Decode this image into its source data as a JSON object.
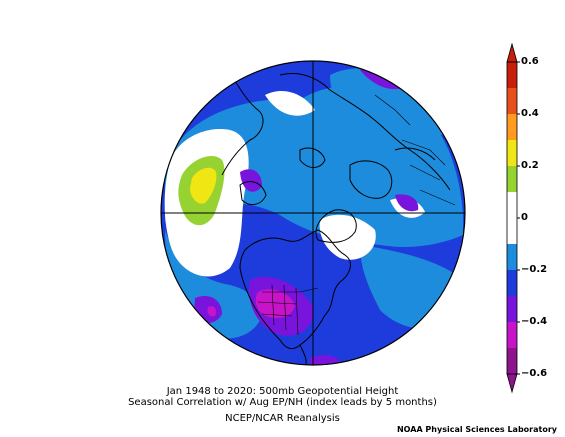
{
  "figure": {
    "title_line1": "Jan 1948 to 2020: 500mb Geopotential Height",
    "title_line2": "Seasonal Correlation w/ Aug EP/NH (index leads by 5 months)",
    "source": "NCEP/NCAR Reanalysis",
    "credit": "NOAA Physical Sciences Laboratory"
  },
  "colorbar": {
    "labels": [
      "0.6",
      "0.4",
      "0.2",
      "0",
      "−0.2",
      "−0.4",
      "−0.6"
    ],
    "bins": [
      {
        "from": 0.5,
        "to": 0.6,
        "color": "#c81e0a"
      },
      {
        "from": 0.4,
        "to": 0.5,
        "color": "#e8501e"
      },
      {
        "from": 0.3,
        "to": 0.4,
        "color": "#ff9b1e"
      },
      {
        "from": 0.2,
        "to": 0.3,
        "color": "#f0e614"
      },
      {
        "from": 0.1,
        "to": 0.2,
        "color": "#96d232"
      },
      {
        "from": -0.1,
        "to": 0.1,
        "color": "#ffffff"
      },
      {
        "from": -0.2,
        "to": -0.1,
        "color": "#1e8cdc"
      },
      {
        "from": -0.3,
        "to": -0.2,
        "color": "#1e3cdc"
      },
      {
        "from": -0.4,
        "to": -0.3,
        "color": "#7814dc"
      },
      {
        "from": -0.5,
        "to": -0.4,
        "color": "#c814c8"
      },
      {
        "from": -0.6,
        "to": -0.5,
        "color": "#8c148c"
      }
    ]
  },
  "map": {
    "projection": "north polar stereographic",
    "field": "correlation",
    "background_color": "#1e3cdc"
  }
}
